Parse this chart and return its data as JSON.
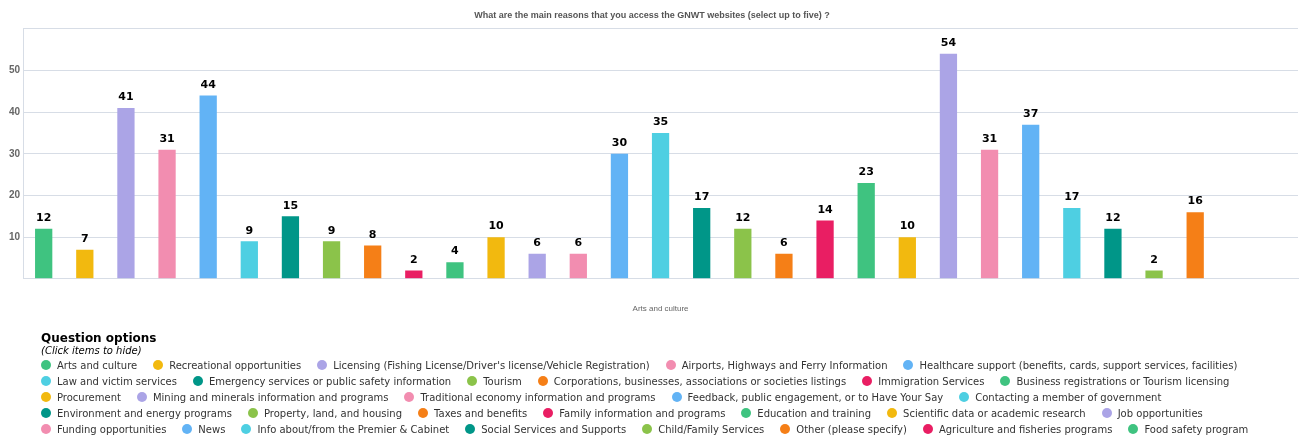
{
  "chart_data": {
    "type": "bar",
    "title": "What are the main reasons that you access the GNWT websites (select up to five) ?",
    "xlabel": "Arts and culture",
    "categories": [
      null,
      null,
      null,
      null,
      null,
      null,
      null,
      null,
      null,
      null,
      null,
      null,
      null,
      null,
      null,
      null,
      null,
      null,
      null,
      null,
      null,
      null,
      null,
      null,
      null,
      null,
      null,
      null,
      null,
      null,
      null
    ],
    "ylim": [
      0,
      60
    ],
    "yticks": [
      {
        "value": 0,
        "label": null
      },
      10,
      20,
      30,
      40,
      50,
      {
        "value": 60,
        "label": null
      }
    ],
    "grid": "y",
    "legend": "bottom",
    "legend_title": "Question options",
    "annotations": [
      "(Click items to hide)"
    ],
    "data_labels": true,
    "series": [
      {
        "name": "Arts and culture",
        "color": "#3fc380",
        "values": [
          12,
          null,
          null,
          null,
          null,
          null,
          null,
          null,
          null,
          null,
          null,
          null,
          null,
          null,
          null,
          null,
          null,
          null,
          null,
          null,
          null,
          null,
          null,
          null,
          null,
          null,
          null,
          null,
          null,
          null,
          null
        ]
      },
      {
        "name": "Recreational opportunities",
        "color": "#f2b90f",
        "values": [
          null,
          7,
          null,
          null,
          null,
          null,
          null,
          null,
          null,
          null,
          null,
          null,
          null,
          null,
          null,
          null,
          null,
          null,
          null,
          null,
          null,
          null,
          null,
          null,
          null,
          null,
          null,
          null,
          null,
          null,
          null
        ]
      },
      {
        "name": "Licensing (Fishing License/Driver's license/Vehicle Registration)",
        "color": "#aba4e6",
        "values": [
          null,
          null,
          41,
          null,
          null,
          null,
          null,
          null,
          null,
          null,
          null,
          null,
          null,
          null,
          null,
          null,
          null,
          null,
          null,
          null,
          null,
          null,
          null,
          null,
          null,
          null,
          null,
          null,
          null,
          null,
          null
        ]
      },
      {
        "name": "Airports, Highways and Ferry Information",
        "color": "#f28db0",
        "values": [
          null,
          null,
          null,
          31,
          null,
          null,
          null,
          null,
          null,
          null,
          null,
          null,
          null,
          null,
          null,
          null,
          null,
          null,
          null,
          null,
          null,
          null,
          null,
          null,
          null,
          null,
          null,
          null,
          null,
          null,
          null
        ]
      },
      {
        "name": "Healthcare support (benefits, cards, support services, facilities)",
        "color": "#62b3f5",
        "values": [
          null,
          null,
          null,
          null,
          44,
          null,
          null,
          null,
          null,
          null,
          null,
          null,
          null,
          null,
          null,
          null,
          null,
          null,
          null,
          null,
          null,
          null,
          null,
          null,
          null,
          null,
          null,
          null,
          null,
          null,
          null
        ]
      },
      {
        "name": "Law and victim services",
        "color": "#4ecfe2",
        "values": [
          null,
          null,
          null,
          null,
          null,
          9,
          null,
          null,
          null,
          null,
          null,
          null,
          null,
          null,
          null,
          null,
          null,
          null,
          null,
          null,
          null,
          null,
          null,
          null,
          null,
          null,
          null,
          null,
          null,
          null,
          null
        ]
      },
      {
        "name": "Emergency services or public safety information",
        "color": "#009688",
        "values": [
          null,
          null,
          null,
          null,
          null,
          null,
          15,
          null,
          null,
          null,
          null,
          null,
          null,
          null,
          null,
          null,
          null,
          null,
          null,
          null,
          null,
          null,
          null,
          null,
          null,
          null,
          null,
          null,
          null,
          null,
          null
        ]
      },
      {
        "name": "Tourism",
        "color": "#8bc34a",
        "values": [
          null,
          null,
          null,
          null,
          null,
          null,
          null,
          9,
          null,
          null,
          null,
          null,
          null,
          null,
          null,
          null,
          null,
          null,
          null,
          null,
          null,
          null,
          null,
          null,
          null,
          null,
          null,
          null,
          null,
          null,
          null
        ]
      },
      {
        "name": "Corporations, businesses, associations or societies listings",
        "color": "#f57f17",
        "values": [
          null,
          null,
          null,
          null,
          null,
          null,
          null,
          null,
          8,
          null,
          null,
          null,
          null,
          null,
          null,
          null,
          null,
          null,
          null,
          null,
          null,
          null,
          null,
          null,
          null,
          null,
          null,
          null,
          null,
          null,
          null
        ]
      },
      {
        "name": "Immigration Services",
        "color": "#e91e63",
        "values": [
          null,
          null,
          null,
          null,
          null,
          null,
          null,
          null,
          null,
          2,
          null,
          null,
          null,
          null,
          null,
          null,
          null,
          null,
          null,
          null,
          null,
          null,
          null,
          null,
          null,
          null,
          null,
          null,
          null,
          null,
          null
        ]
      },
      {
        "name": "Business registrations or Tourism licensing",
        "color": "#3fc380",
        "values": [
          null,
          null,
          null,
          null,
          null,
          null,
          null,
          null,
          null,
          null,
          4,
          null,
          null,
          null,
          null,
          null,
          null,
          null,
          null,
          null,
          null,
          null,
          null,
          null,
          null,
          null,
          null,
          null,
          null,
          null,
          null
        ]
      },
      {
        "name": "Procurement",
        "color": "#f2b90f",
        "values": [
          null,
          null,
          null,
          null,
          null,
          null,
          null,
          null,
          null,
          null,
          null,
          10,
          null,
          null,
          null,
          null,
          null,
          null,
          null,
          null,
          null,
          null,
          null,
          null,
          null,
          null,
          null,
          null,
          null,
          null,
          null
        ]
      },
      {
        "name": "Mining and minerals information and programs",
        "color": "#aba4e6",
        "values": [
          null,
          null,
          null,
          null,
          null,
          null,
          null,
          null,
          null,
          null,
          null,
          null,
          6,
          null,
          null,
          null,
          null,
          null,
          null,
          null,
          null,
          null,
          null,
          null,
          null,
          null,
          null,
          null,
          null,
          null,
          null
        ]
      },
      {
        "name": "Traditional economy information and programs",
        "color": "#f28db0",
        "values": [
          null,
          null,
          null,
          null,
          null,
          null,
          null,
          null,
          null,
          null,
          null,
          null,
          null,
          6,
          null,
          null,
          null,
          null,
          null,
          null,
          null,
          null,
          null,
          null,
          null,
          null,
          null,
          null,
          null,
          null,
          null
        ]
      },
      {
        "name": "Feedback, public engagement, or to Have Your Say",
        "color": "#62b3f5",
        "values": [
          null,
          null,
          null,
          null,
          null,
          null,
          null,
          null,
          null,
          null,
          null,
          null,
          null,
          null,
          30,
          null,
          null,
          null,
          null,
          null,
          null,
          null,
          null,
          null,
          null,
          null,
          null,
          null,
          null,
          null,
          null
        ]
      },
      {
        "name": "Contacting a member of government",
        "color": "#4ecfe2",
        "values": [
          null,
          null,
          null,
          null,
          null,
          null,
          null,
          null,
          null,
          null,
          null,
          null,
          null,
          null,
          null,
          35,
          null,
          null,
          null,
          null,
          null,
          null,
          null,
          null,
          null,
          null,
          null,
          null,
          null,
          null,
          null
        ]
      },
      {
        "name": "Environment and energy programs",
        "color": "#009688",
        "values": [
          null,
          null,
          null,
          null,
          null,
          null,
          null,
          null,
          null,
          null,
          null,
          null,
          null,
          null,
          null,
          null,
          17,
          null,
          null,
          null,
          null,
          null,
          null,
          null,
          null,
          null,
          null,
          null,
          null,
          null,
          null
        ]
      },
      {
        "name": "Property, land, and housing",
        "color": "#8bc34a",
        "values": [
          null,
          null,
          null,
          null,
          null,
          null,
          null,
          null,
          null,
          null,
          null,
          null,
          null,
          null,
          null,
          null,
          null,
          12,
          null,
          null,
          null,
          null,
          null,
          null,
          null,
          null,
          null,
          null,
          null,
          null,
          null
        ]
      },
      {
        "name": "Taxes and benefits",
        "color": "#f57f17",
        "values": [
          null,
          null,
          null,
          null,
          null,
          null,
          null,
          null,
          null,
          null,
          null,
          null,
          null,
          null,
          null,
          null,
          null,
          null,
          6,
          null,
          null,
          null,
          null,
          null,
          null,
          null,
          null,
          null,
          null,
          null,
          null
        ]
      },
      {
        "name": "Family information and programs",
        "color": "#e91e63",
        "values": [
          null,
          null,
          null,
          null,
          null,
          null,
          null,
          null,
          null,
          null,
          null,
          null,
          null,
          null,
          null,
          null,
          null,
          null,
          null,
          14,
          null,
          null,
          null,
          null,
          null,
          null,
          null,
          null,
          null,
          null,
          null
        ]
      },
      {
        "name": "Education and training",
        "color": "#3fc380",
        "values": [
          null,
          null,
          null,
          null,
          null,
          null,
          null,
          null,
          null,
          null,
          null,
          null,
          null,
          null,
          null,
          null,
          null,
          null,
          null,
          null,
          23,
          null,
          null,
          null,
          null,
          null,
          null,
          null,
          null,
          null,
          null
        ]
      },
      {
        "name": "Scientific data or academic research",
        "color": "#f2b90f",
        "values": [
          null,
          null,
          null,
          null,
          null,
          null,
          null,
          null,
          null,
          null,
          null,
          null,
          null,
          null,
          null,
          null,
          null,
          null,
          null,
          null,
          null,
          10,
          null,
          null,
          null,
          null,
          null,
          null,
          null,
          null,
          null
        ]
      },
      {
        "name": "Job opportunities",
        "color": "#aba4e6",
        "values": [
          null,
          null,
          null,
          null,
          null,
          null,
          null,
          null,
          null,
          null,
          null,
          null,
          null,
          null,
          null,
          null,
          null,
          null,
          null,
          null,
          null,
          null,
          54,
          null,
          null,
          null,
          null,
          null,
          null,
          null,
          null
        ]
      },
      {
        "name": "Funding opportunities",
        "color": "#f28db0",
        "values": [
          null,
          null,
          null,
          null,
          null,
          null,
          null,
          null,
          null,
          null,
          null,
          null,
          null,
          null,
          null,
          null,
          null,
          null,
          null,
          null,
          null,
          null,
          null,
          31,
          null,
          null,
          null,
          null,
          null,
          null,
          null
        ]
      },
      {
        "name": "News",
        "color": "#62b3f5",
        "values": [
          null,
          null,
          null,
          null,
          null,
          null,
          null,
          null,
          null,
          null,
          null,
          null,
          null,
          null,
          null,
          null,
          null,
          null,
          null,
          null,
          null,
          null,
          null,
          null,
          37,
          null,
          null,
          null,
          null,
          null,
          null
        ]
      },
      {
        "name": "Info about/from the Premier & Cabinet",
        "color": "#4ecfe2",
        "values": [
          null,
          null,
          null,
          null,
          null,
          null,
          null,
          null,
          null,
          null,
          null,
          null,
          null,
          null,
          null,
          null,
          null,
          null,
          null,
          null,
          null,
          null,
          null,
          null,
          null,
          17,
          null,
          null,
          null,
          null,
          null
        ]
      },
      {
        "name": "Social Services and Supports",
        "color": "#009688",
        "values": [
          null,
          null,
          null,
          null,
          null,
          null,
          null,
          null,
          null,
          null,
          null,
          null,
          null,
          null,
          null,
          null,
          null,
          null,
          null,
          null,
          null,
          null,
          null,
          null,
          null,
          null,
          12,
          null,
          null,
          null,
          null
        ]
      },
      {
        "name": "Child/Family Services",
        "color": "#8bc34a",
        "values": [
          null,
          null,
          null,
          null,
          null,
          null,
          null,
          null,
          null,
          null,
          null,
          null,
          null,
          null,
          null,
          null,
          null,
          null,
          null,
          null,
          null,
          null,
          null,
          null,
          null,
          null,
          null,
          2,
          null,
          null,
          null
        ]
      },
      {
        "name": "Other (please specify)",
        "color": "#f57f17",
        "values": [
          null,
          null,
          null,
          null,
          null,
          null,
          null,
          null,
          null,
          null,
          null,
          null,
          null,
          null,
          null,
          null,
          null,
          null,
          null,
          null,
          null,
          null,
          null,
          null,
          null,
          null,
          null,
          null,
          16,
          null,
          null
        ]
      },
      {
        "name": "Agriculture and fisheries programs",
        "color": "#e91e63",
        "values": [
          null,
          null,
          null,
          null,
          null,
          null,
          null,
          null,
          null,
          null,
          null,
          null,
          null,
          null,
          null,
          null,
          null,
          null,
          null,
          null,
          null,
          null,
          null,
          null,
          null,
          null,
          null,
          null,
          null,
          null,
          null
        ]
      },
      {
        "name": "Food safety program",
        "color": "#3fc380",
        "values": [
          null,
          null,
          null,
          null,
          null,
          null,
          null,
          null,
          null,
          null,
          null,
          null,
          null,
          null,
          null,
          null,
          null,
          null,
          null,
          null,
          null,
          null,
          null,
          null,
          null,
          null,
          null,
          null,
          null,
          null,
          null
        ]
      }
    ]
  }
}
